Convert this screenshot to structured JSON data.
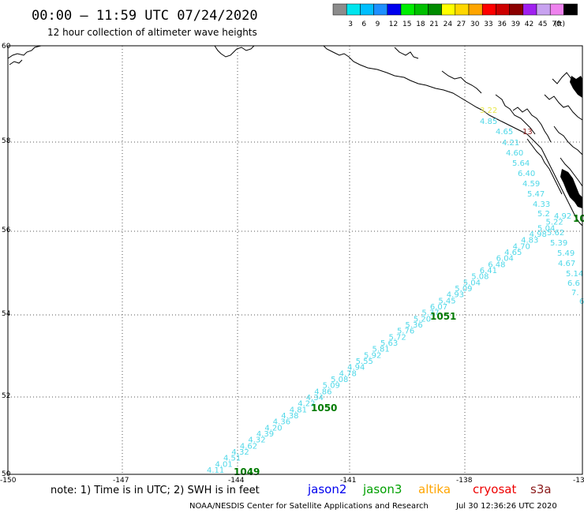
{
  "header": {
    "title": "00:00 – 11:59 UTC 07/24/2020",
    "subtitle": "12 hour collection of altimeter wave heights"
  },
  "color_scale": {
    "unit_label": "(ft)",
    "bins": [
      {
        "label": "",
        "color": "#8c8c8c"
      },
      {
        "label": "3",
        "color": "#00e5ee"
      },
      {
        "label": "6",
        "color": "#00bfff"
      },
      {
        "label": "9",
        "color": "#1e90ff"
      },
      {
        "label": "12",
        "color": "#0000ee"
      },
      {
        "label": "15",
        "color": "#00ee00"
      },
      {
        "label": "18",
        "color": "#00c000"
      },
      {
        "label": "21",
        "color": "#008b00"
      },
      {
        "label": "24",
        "color": "#ffff00"
      },
      {
        "label": "27",
        "color": "#ffd700"
      },
      {
        "label": "30",
        "color": "#ffa500"
      },
      {
        "label": "33",
        "color": "#ff0000"
      },
      {
        "label": "36",
        "color": "#cd0000"
      },
      {
        "label": "39",
        "color": "#8b0000"
      },
      {
        "label": "42",
        "color": "#a020f0"
      },
      {
        "label": "45",
        "color": "#c8a2f0"
      },
      {
        "label": "70",
        "color": "#ee82ee"
      },
      {
        "label": "",
        "color": "#000000"
      }
    ]
  },
  "map": {
    "lat_labels": [
      "60",
      "58",
      "56",
      "54",
      "52",
      "50"
    ],
    "lon_labels": [
      "-150",
      "-147",
      "-144",
      "-141",
      "-138",
      "-13"
    ],
    "grid": "dotted"
  },
  "track_values": [
    {
      "text": "4.11",
      "color": "#4fd8e8"
    },
    {
      "text": "4.01",
      "color": "#4fd8e8"
    },
    {
      "text": "4.51",
      "color": "#4fd8e8"
    },
    {
      "text": "4.32",
      "color": "#4fd8e8"
    },
    {
      "text": "4.62",
      "color": "#4fd8e8"
    },
    {
      "text": "4.32",
      "color": "#4fd8e8"
    },
    {
      "text": "4.39",
      "color": "#4fd8e8"
    },
    {
      "text": "4.20",
      "color": "#4fd8e8"
    },
    {
      "text": "4.36",
      "color": "#4fd8e8"
    },
    {
      "text": "4.38",
      "color": "#4fd8e8"
    },
    {
      "text": "4.81",
      "color": "#4fd8e8"
    },
    {
      "text": "4.22",
      "color": "#4fd8e8"
    },
    {
      "text": "4.34",
      "color": "#4fd8e8"
    },
    {
      "text": "4.86",
      "color": "#4fd8e8"
    },
    {
      "text": "5.09",
      "color": "#4fd8e8"
    },
    {
      "text": "5.08",
      "color": "#4fd8e8"
    },
    {
      "text": "4.78",
      "color": "#4fd8e8"
    },
    {
      "text": "4.94",
      "color": "#4fd8e8"
    },
    {
      "text": "5.55",
      "color": "#4fd8e8"
    },
    {
      "text": "5.92",
      "color": "#4fd8e8"
    },
    {
      "text": "5.81",
      "color": "#4fd8e8"
    },
    {
      "text": "5.63",
      "color": "#4fd8e8"
    },
    {
      "text": "5.72",
      "color": "#4fd8e8"
    },
    {
      "text": "5.76",
      "color": "#4fd8e8"
    },
    {
      "text": "5.36",
      "color": "#4fd8e8"
    },
    {
      "text": "5.20",
      "color": "#4fd8e8"
    },
    {
      "text": "5.37",
      "color": "#4fd8e8"
    },
    {
      "text": "6.07",
      "color": "#4fd8e8"
    },
    {
      "text": "5.45",
      "color": "#4fd8e8"
    },
    {
      "text": "4.93",
      "color": "#4fd8e8"
    },
    {
      "text": "5.09",
      "color": "#4fd8e8"
    },
    {
      "text": "5.04",
      "color": "#4fd8e8"
    },
    {
      "text": "5.08",
      "color": "#4fd8e8"
    },
    {
      "text": "6.41",
      "color": "#4fd8e8"
    },
    {
      "text": "6.48",
      "color": "#4fd8e8"
    },
    {
      "text": "6.04",
      "color": "#4fd8e8"
    },
    {
      "text": "4.65",
      "color": "#4fd8e8"
    },
    {
      "text": "4.70",
      "color": "#4fd8e8"
    },
    {
      "text": "4.83",
      "color": "#4fd8e8"
    },
    {
      "text": "4.98",
      "color": "#4fd8e8"
    },
    {
      "text": "5.04",
      "color": "#4fd8e8"
    },
    {
      "text": "5.22",
      "color": "#4fd8e8"
    },
    {
      "text": "4.92",
      "color": "#4fd8e8"
    },
    {
      "text": "5.62",
      "color": "#4fd8e8"
    },
    {
      "text": "5.39",
      "color": "#4fd8e8"
    },
    {
      "text": "5.49",
      "color": "#4fd8e8"
    },
    {
      "text": "4.67",
      "color": "#4fd8e8"
    },
    {
      "text": "5.14",
      "color": "#4fd8e8"
    },
    {
      "text": "6.6",
      "color": "#4fd8e8"
    },
    {
      "text": "7.",
      "color": "#4fd8e8"
    },
    {
      "text": "6",
      "color": "#4fd8e8"
    },
    {
      "text": "3.22",
      "color": "#e8e84a"
    },
    {
      "text": "4.85",
      "color": "#4fd8e8"
    },
    {
      "text": "4.65",
      "color": "#4fd8e8"
    },
    {
      "text": "13",
      "color": "#8b1a1a"
    },
    {
      "text": "4.21",
      "color": "#4fd8e8"
    },
    {
      "text": "4.60",
      "color": "#4fd8e8"
    },
    {
      "text": "5.64",
      "color": "#4fd8e8"
    },
    {
      "text": "6.40",
      "color": "#4fd8e8"
    },
    {
      "text": "4.59",
      "color": "#4fd8e8"
    },
    {
      "text": "5.47",
      "color": "#4fd8e8"
    },
    {
      "text": "4.33",
      "color": "#4fd8e8"
    },
    {
      "text": "5.2",
      "color": "#4fd8e8"
    }
  ],
  "pass_labels": [
    {
      "text": "1049",
      "color": "#007a00"
    },
    {
      "text": "1050",
      "color": "#007a00"
    },
    {
      "text": "1051",
      "color": "#007a00"
    },
    {
      "text": "10",
      "color": "#007a00"
    }
  ],
  "legend": {
    "note": "note: 1) Time is in UTC; 2) SWH is in feet",
    "satellites": [
      {
        "name": "jason2",
        "color": "#0000ee"
      },
      {
        "name": "jason3",
        "color": "#00a000"
      },
      {
        "name": "altika",
        "color": "#ffa500"
      },
      {
        "name": "cryosat",
        "color": "#ee0000"
      },
      {
        "name": "s3a",
        "color": "#8b1a1a"
      }
    ]
  },
  "footer": {
    "credit": "NOAA/NESDIS Center for Satellite Applications and Research",
    "timestamp": "Jul 30 12:36:26 UTC 2020"
  }
}
